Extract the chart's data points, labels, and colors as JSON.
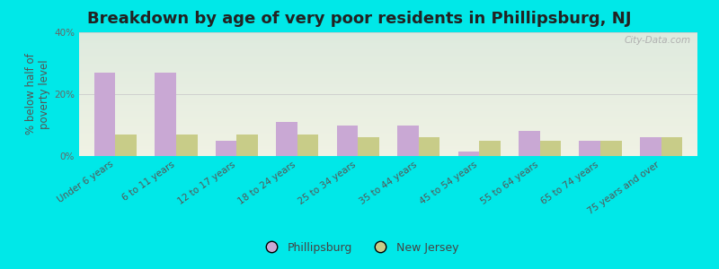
{
  "title": "Breakdown by age of very poor residents in Phillipsburg, NJ",
  "ylabel": "% below half of\npoverty level",
  "categories": [
    "Under 6 years",
    "6 to 11 years",
    "12 to 17 years",
    "18 to 24 years",
    "25 to 34 years",
    "35 to 44 years",
    "45 to 54 years",
    "55 to 64 years",
    "65 to 74 years",
    "75 years and over"
  ],
  "phillipsburg": [
    27,
    27,
    5,
    11,
    10,
    10,
    1.5,
    8,
    5,
    6
  ],
  "new_jersey": [
    7,
    7,
    7,
    7,
    6,
    6,
    5,
    5,
    5,
    6
  ],
  "bar_color_phil": "#c9a8d4",
  "bar_color_nj": "#c8cc88",
  "background_outer": "#00e8e8",
  "background_plot_top": "#deeade",
  "background_plot_bottom": "#f0f2e4",
  "ylim": [
    0,
    40
  ],
  "yticks": [
    0,
    20,
    40
  ],
  "ytick_labels": [
    "0%",
    "20%",
    "40%"
  ],
  "title_fontsize": 13,
  "axis_label_fontsize": 8.5,
  "tick_fontsize": 7.5,
  "legend_label_phil": "Phillipsburg",
  "legend_label_nj": "New Jersey",
  "watermark": "City-Data.com"
}
